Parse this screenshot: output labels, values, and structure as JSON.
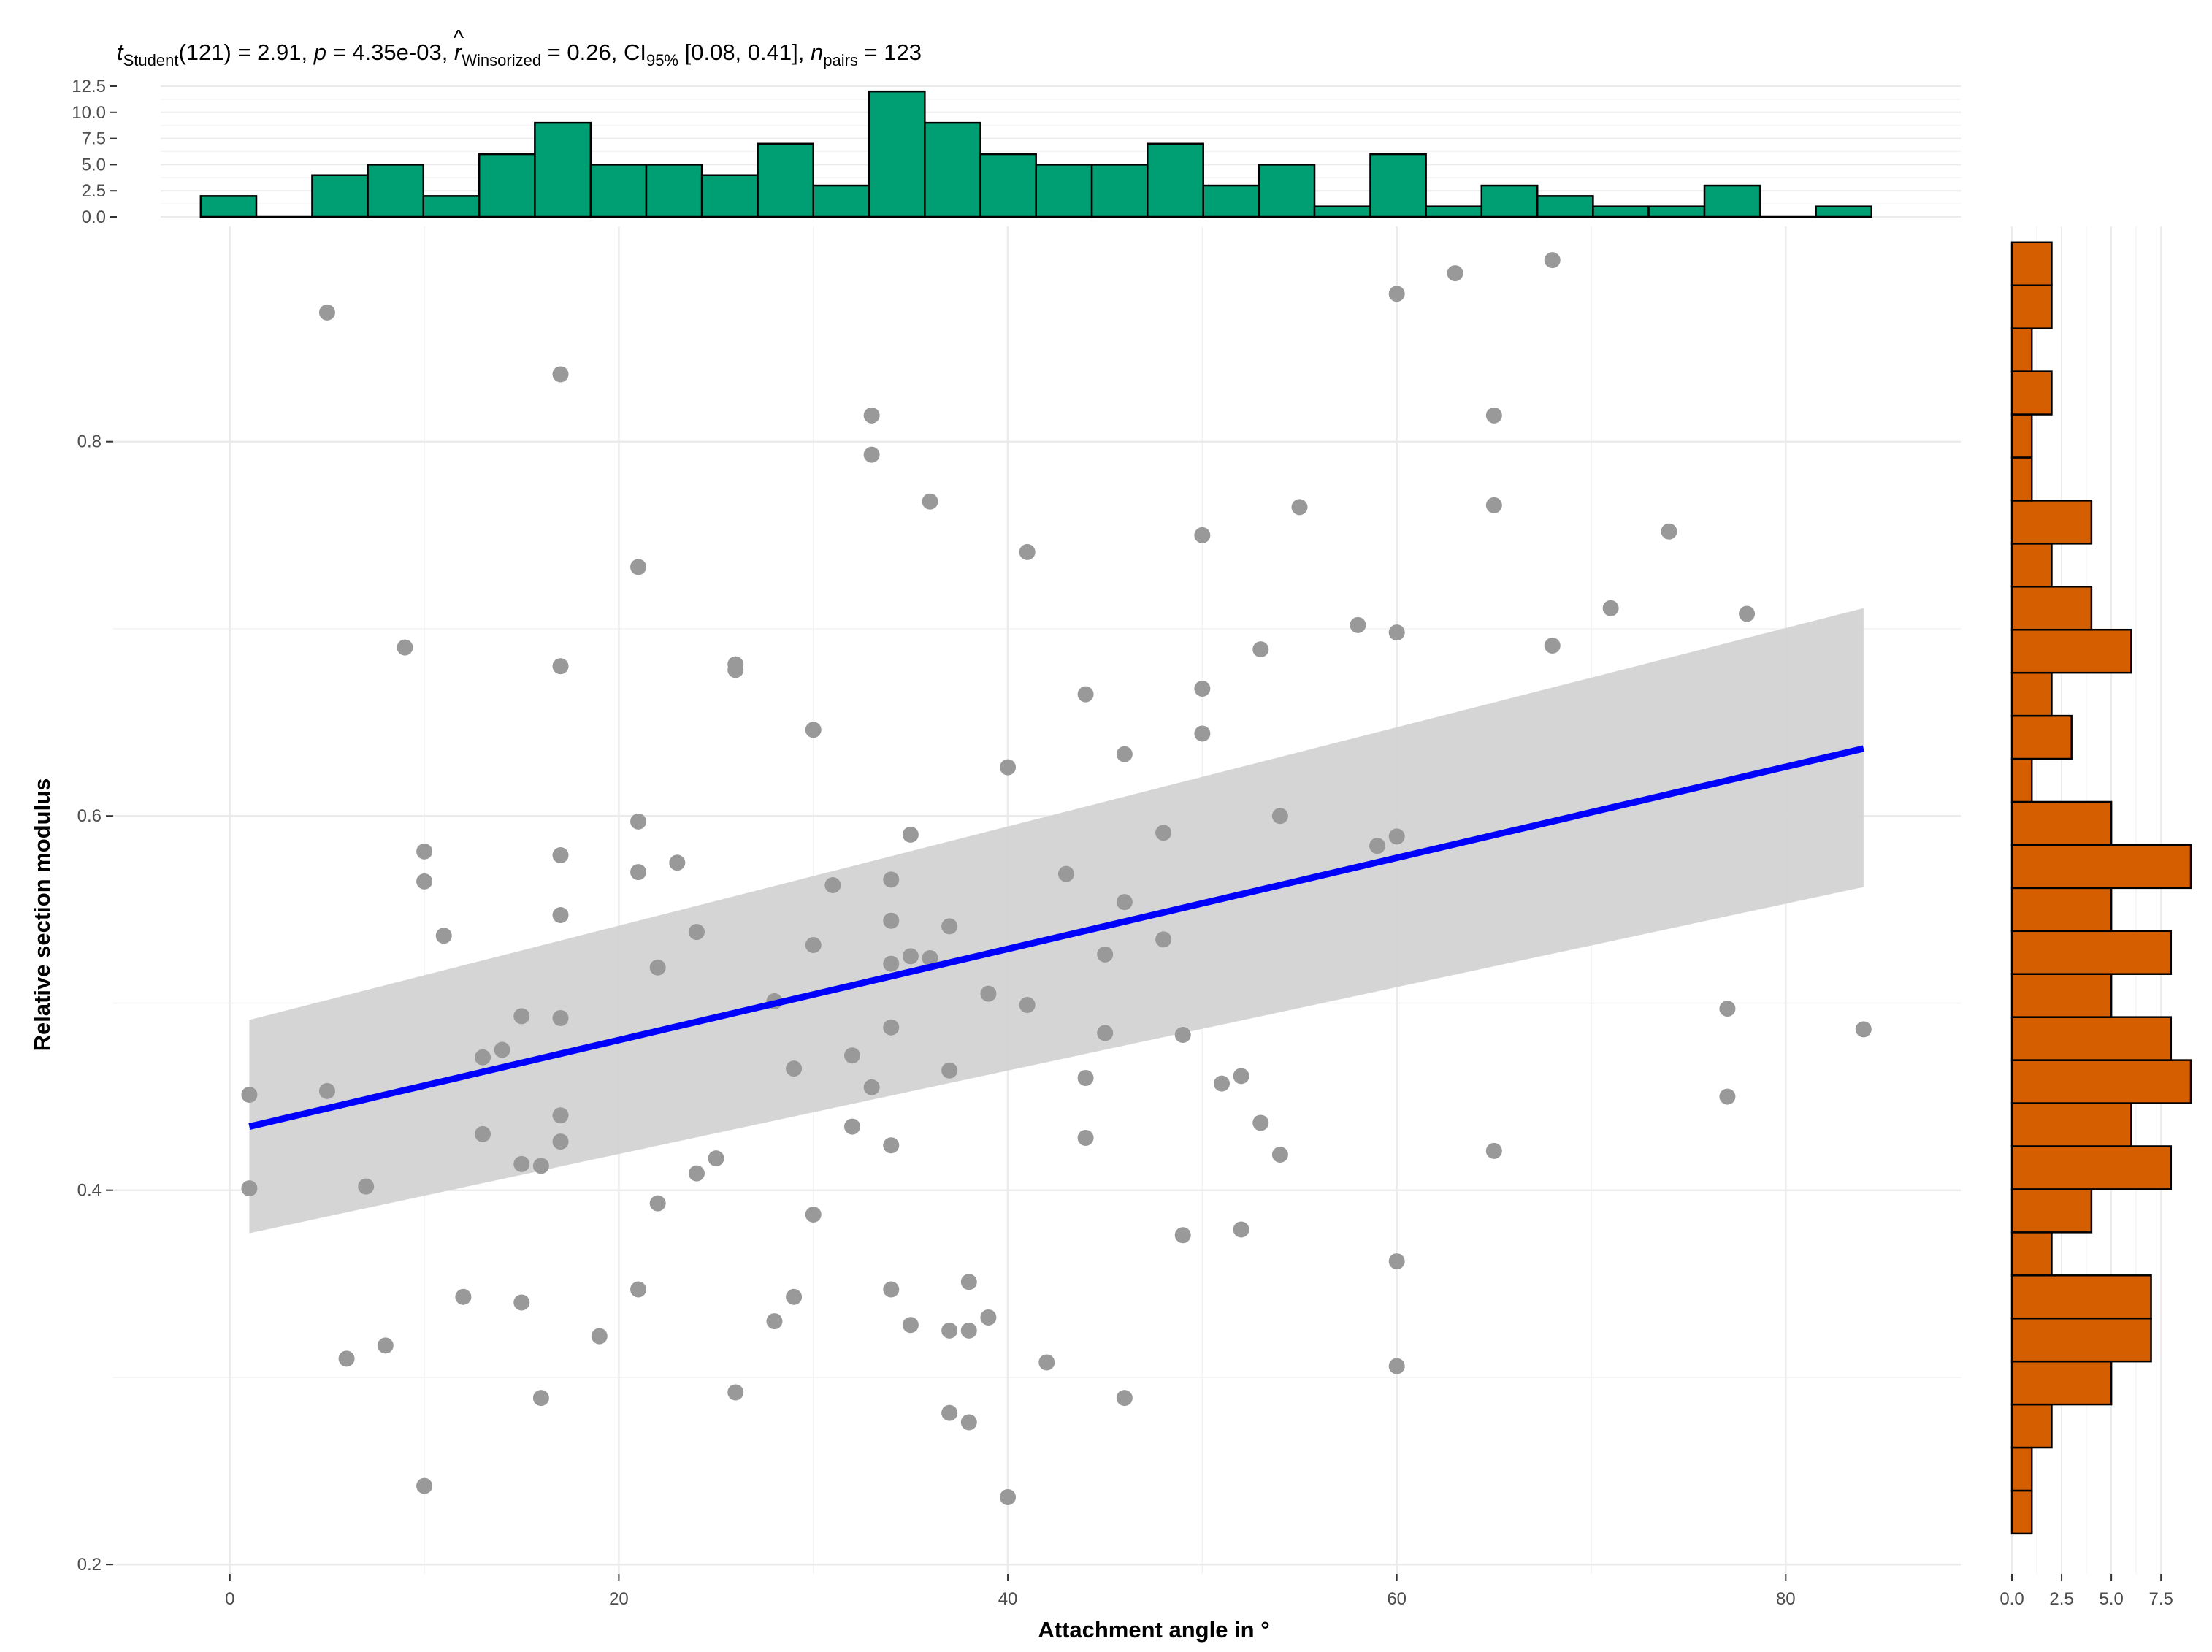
{
  "chart_data": {
    "type": "scatter",
    "title": {
      "t_sym": "t",
      "t_sub": "Student",
      "t_val": "(121) = 2.91, ",
      "p_sym": "p",
      "p_val": " = 4.35e-03, ",
      "r_sym": "r",
      "r_hat": "^",
      "r_sub": "Winsorized",
      "r_val": " = 0.26, CI",
      "ci_sub": "95%",
      "ci_val": " [0.08, 0.41], ",
      "n_sym": "n",
      "n_sub": "pairs",
      "n_val": " = 123"
    },
    "xlabel": "Attachment angle in °",
    "ylabel": "Relative section modulus",
    "xlim": [
      -6,
      89
    ],
    "ylim": [
      0.195,
      0.915
    ],
    "x_ticks": [
      0,
      20,
      40,
      60,
      80
    ],
    "x_tick_labels": [
      "0",
      "20",
      "40",
      "60",
      "80"
    ],
    "y_ticks": [
      0.2,
      0.4,
      0.6,
      0.8
    ],
    "y_tick_labels": [
      "0.2",
      "0.4",
      "0.6",
      "0.8"
    ],
    "grid": true,
    "colors": {
      "points": "#999999",
      "fit_line": "#0000ff",
      "ci_band": "#d3d3d3",
      "x_hist": "#009e73",
      "y_hist": "#d55e00"
    },
    "fit": {
      "x": [
        1,
        84
      ],
      "y": [
        0.434,
        0.636
      ],
      "ci_lower": [
        0.377,
        0.562
      ],
      "ci_upper": [
        0.491,
        0.711
      ]
    },
    "points": [
      [
        1,
        0.451
      ],
      [
        1,
        0.401
      ],
      [
        5,
        0.869
      ],
      [
        5,
        0.453
      ],
      [
        6,
        0.31
      ],
      [
        7,
        0.402
      ],
      [
        8,
        0.317
      ],
      [
        9,
        0.69
      ],
      [
        10,
        0.581
      ],
      [
        10,
        0.565
      ],
      [
        10,
        0.242
      ],
      [
        11,
        0.536
      ],
      [
        12,
        0.343
      ],
      [
        13,
        0.471
      ],
      [
        13,
        0.43
      ],
      [
        14,
        0.475
      ],
      [
        15,
        0.493
      ],
      [
        15,
        0.414
      ],
      [
        15,
        0.34
      ],
      [
        16,
        0.413
      ],
      [
        16,
        0.289
      ],
      [
        17,
        0.836
      ],
      [
        17,
        0.68
      ],
      [
        17,
        0.579
      ],
      [
        17,
        0.547
      ],
      [
        17,
        0.492
      ],
      [
        17,
        0.44
      ],
      [
        17,
        0.426
      ],
      [
        19,
        0.322
      ],
      [
        21,
        0.733
      ],
      [
        21,
        0.597
      ],
      [
        21,
        0.57
      ],
      [
        21,
        0.347
      ],
      [
        22,
        0.519
      ],
      [
        22,
        0.393
      ],
      [
        23,
        0.575
      ],
      [
        24,
        0.538
      ],
      [
        24,
        0.409
      ],
      [
        25,
        0.417
      ],
      [
        26,
        0.681
      ],
      [
        26,
        0.678
      ],
      [
        26,
        0.292
      ],
      [
        28,
        0.501
      ],
      [
        28,
        0.33
      ],
      [
        29,
        0.465
      ],
      [
        29,
        0.343
      ],
      [
        30,
        0.646
      ],
      [
        30,
        0.531
      ],
      [
        30,
        0.387
      ],
      [
        31,
        0.563
      ],
      [
        32,
        0.472
      ],
      [
        32,
        0.434
      ],
      [
        33,
        0.814
      ],
      [
        33,
        0.793
      ],
      [
        33,
        0.455
      ],
      [
        34,
        0.566
      ],
      [
        34,
        0.544
      ],
      [
        34,
        0.521
      ],
      [
        34,
        0.487
      ],
      [
        34,
        0.424
      ],
      [
        34,
        0.347
      ],
      [
        35,
        0.59
      ],
      [
        35,
        0.525
      ],
      [
        35,
        0.328
      ],
      [
        36,
        0.768
      ],
      [
        36,
        0.524
      ],
      [
        37,
        0.541
      ],
      [
        37,
        0.464
      ],
      [
        37,
        0.325
      ],
      [
        37,
        0.281
      ],
      [
        38,
        0.351
      ],
      [
        38,
        0.325
      ],
      [
        38,
        0.276
      ],
      [
        39,
        0.332
      ],
      [
        39,
        0.505
      ],
      [
        40,
        0.626
      ],
      [
        40,
        0.236
      ],
      [
        41,
        0.741
      ],
      [
        41,
        0.499
      ],
      [
        42,
        0.308
      ],
      [
        43,
        0.569
      ],
      [
        44,
        0.665
      ],
      [
        44,
        0.46
      ],
      [
        44,
        0.428
      ],
      [
        45,
        0.526
      ],
      [
        45,
        0.484
      ],
      [
        46,
        0.633
      ],
      [
        46,
        0.554
      ],
      [
        46,
        0.289
      ],
      [
        48,
        0.591
      ],
      [
        48,
        0.534
      ],
      [
        49,
        0.483
      ],
      [
        49,
        0.376
      ],
      [
        50,
        0.75
      ],
      [
        50,
        0.668
      ],
      [
        50,
        0.644
      ],
      [
        51,
        0.457
      ],
      [
        52,
        0.461
      ],
      [
        52,
        0.379
      ],
      [
        53,
        0.689
      ],
      [
        53,
        0.436
      ],
      [
        54,
        0.6
      ],
      [
        54,
        0.419
      ],
      [
        55,
        0.765
      ],
      [
        58,
        0.702
      ],
      [
        59,
        0.584
      ],
      [
        60,
        0.879
      ],
      [
        60,
        0.698
      ],
      [
        60,
        0.589
      ],
      [
        60,
        0.362
      ],
      [
        60,
        0.306
      ],
      [
        63,
        0.89
      ],
      [
        65,
        0.814
      ],
      [
        65,
        0.766
      ],
      [
        65,
        0.421
      ],
      [
        68,
        0.897
      ],
      [
        68,
        0.691
      ],
      [
        71,
        0.711
      ],
      [
        74,
        0.752
      ],
      [
        77,
        0.497
      ],
      [
        77,
        0.45
      ],
      [
        78,
        0.708
      ],
      [
        84,
        0.486
      ]
    ],
    "x_histogram": {
      "edges": [
        -1.5,
        1.36,
        4.23,
        7.09,
        9.95,
        12.82,
        15.68,
        18.55,
        21.41,
        24.27,
        27.14,
        30.0,
        32.86,
        35.73,
        38.59,
        41.45,
        44.32,
        47.18,
        50.05,
        52.91,
        55.77,
        58.64,
        61.5,
        64.36,
        67.23,
        70.09,
        72.95,
        75.82,
        78.68,
        81.55,
        84.41
      ],
      "counts": [
        2,
        0,
        4,
        5,
        2,
        6,
        9,
        5,
        5,
        4,
        7,
        3,
        12,
        9,
        6,
        5,
        5,
        7,
        3,
        5,
        1,
        6,
        1,
        3,
        2,
        1,
        1,
        3,
        0,
        1
      ],
      "ticks": [
        0,
        2.5,
        5,
        7.5,
        10,
        12.5
      ],
      "tick_labels": [
        "0.0",
        "2.5",
        "5.0",
        "7.5",
        "10.0",
        "12.5"
      ],
      "lim": [
        0,
        12.5
      ]
    },
    "y_histogram": {
      "edges": [
        0.2165,
        0.2395,
        0.2625,
        0.2855,
        0.3085,
        0.3315,
        0.3545,
        0.3775,
        0.4005,
        0.4235,
        0.4465,
        0.4695,
        0.4925,
        0.5155,
        0.5385,
        0.5615,
        0.5845,
        0.6075,
        0.6305,
        0.6535,
        0.6765,
        0.6995,
        0.7225,
        0.7455,
        0.7685,
        0.7915,
        0.8145,
        0.8375,
        0.8605,
        0.8835,
        0.9065
      ],
      "counts": [
        1,
        1,
        2,
        5,
        7,
        7,
        2,
        4,
        8,
        6,
        9,
        8,
        5,
        8,
        5,
        9,
        5,
        1,
        3,
        2,
        6,
        4,
        2,
        4,
        1,
        1,
        2,
        1,
        2,
        2
      ],
      "ticks": [
        0,
        2.5,
        5,
        7.5
      ],
      "tick_labels": [
        "0.0",
        "2.5",
        "5.0",
        "7.5"
      ],
      "lim": [
        0,
        9
      ]
    }
  }
}
